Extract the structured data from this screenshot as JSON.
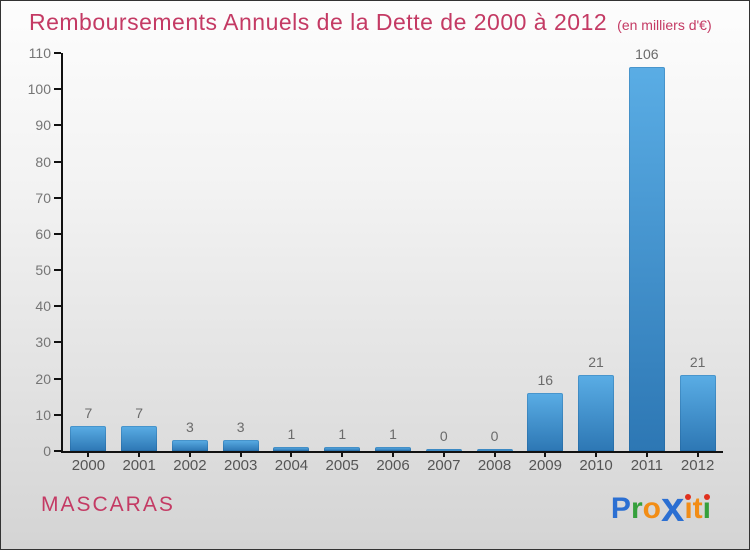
{
  "page": {
    "title": "Remboursements Annuels de la Dette de 2000 à 2012",
    "subtitle": "(en milliers d'€)",
    "title_color": "#c43a64",
    "footer_left": "MASCARAS",
    "footer_left_color": "#c43a64",
    "logo": {
      "name": "Proxiti",
      "letters": [
        {
          "char": "P",
          "color": "#2b6fd2"
        },
        {
          "char": "r",
          "color": "#35a03c"
        },
        {
          "char": "o",
          "color": "#f28d15"
        },
        {
          "char": "x",
          "color": "#2b6fd2",
          "big": true
        },
        {
          "char": "ı",
          "color": "#f28d15",
          "dot": "#e0301e"
        },
        {
          "char": "t",
          "color": "#f28d15"
        },
        {
          "char": "ı",
          "color": "#35a03c",
          "dot": "#e0301e"
        }
      ]
    }
  },
  "chart_data": {
    "type": "bar",
    "title": "Remboursements Annuels de la Dette de 2000 à 2012",
    "subtitle": "(en milliers d'€)",
    "categories": [
      "2000",
      "2001",
      "2002",
      "2003",
      "2004",
      "2005",
      "2006",
      "2007",
      "2008",
      "2009",
      "2010",
      "2011",
      "2012"
    ],
    "values": [
      7,
      7,
      3,
      3,
      1,
      1,
      1,
      0,
      0,
      16,
      21,
      106,
      21
    ],
    "xlabel": "",
    "ylabel": "",
    "ylim": [
      0,
      110
    ],
    "ytick_step": 10,
    "grid": false,
    "legend": false,
    "bar_color_top": "#5aade5",
    "bar_color_bottom": "#2d77b4",
    "zero_bar_color": "#4a9dd8",
    "axis_color": "#111111",
    "ytick_label_color": "#757575",
    "xtick_label_color": "#555555",
    "value_label_color": "#6a6a6a"
  }
}
